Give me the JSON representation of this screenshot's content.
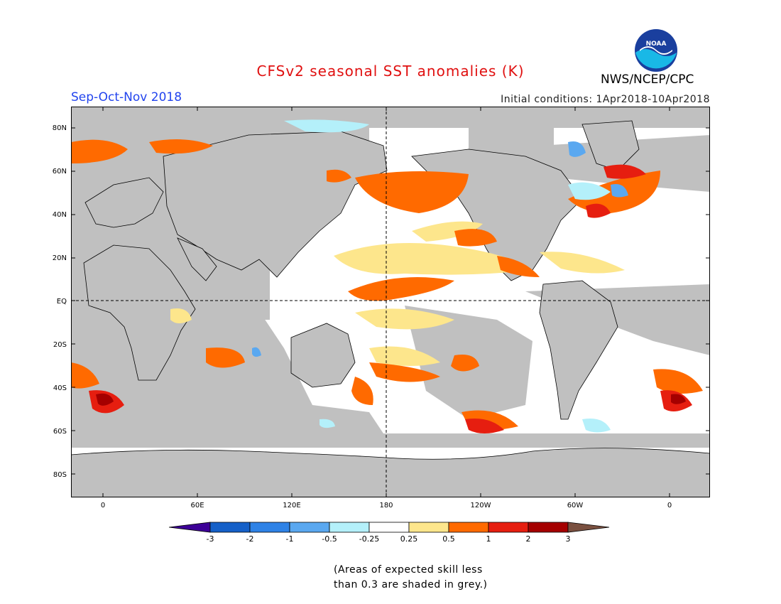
{
  "header": {
    "title": "CFSv2 seasonal SST anomalies (K)",
    "season": "Sep-Oct-Nov 2018",
    "initial_conditions": "Initial conditions: 1Apr2018-10Apr2018",
    "agency": "NWS/NCEP/CPC",
    "logo_text": "NOAA"
  },
  "map": {
    "lat_labels": [
      "80N",
      "60N",
      "40N",
      "20N",
      "EQ",
      "20S",
      "40S",
      "60S",
      "80S"
    ],
    "lon_labels": [
      "0",
      "60E",
      "120E",
      "180",
      "120W",
      "60W",
      "0"
    ],
    "land_color": "#c0c0c0",
    "ocean_neutral_color": "#ffffff"
  },
  "colorbar": {
    "ticks": [
      "-3",
      "-2",
      "-1",
      "-0.5",
      "-0.25",
      "0.25",
      "0.5",
      "1",
      "2",
      "3"
    ],
    "colors": [
      "#3d0097",
      "#1560c8",
      "#2e82e6",
      "#5aa8f0",
      "#b4f0fa",
      "#ffffff",
      "#fde68c",
      "#ff6a00",
      "#e61e10",
      "#a50000",
      "#7a5040"
    ]
  },
  "footnote": {
    "line1": "(Areas of expected skill less",
    "line2": "than 0.3 are shaded in grey.)"
  }
}
